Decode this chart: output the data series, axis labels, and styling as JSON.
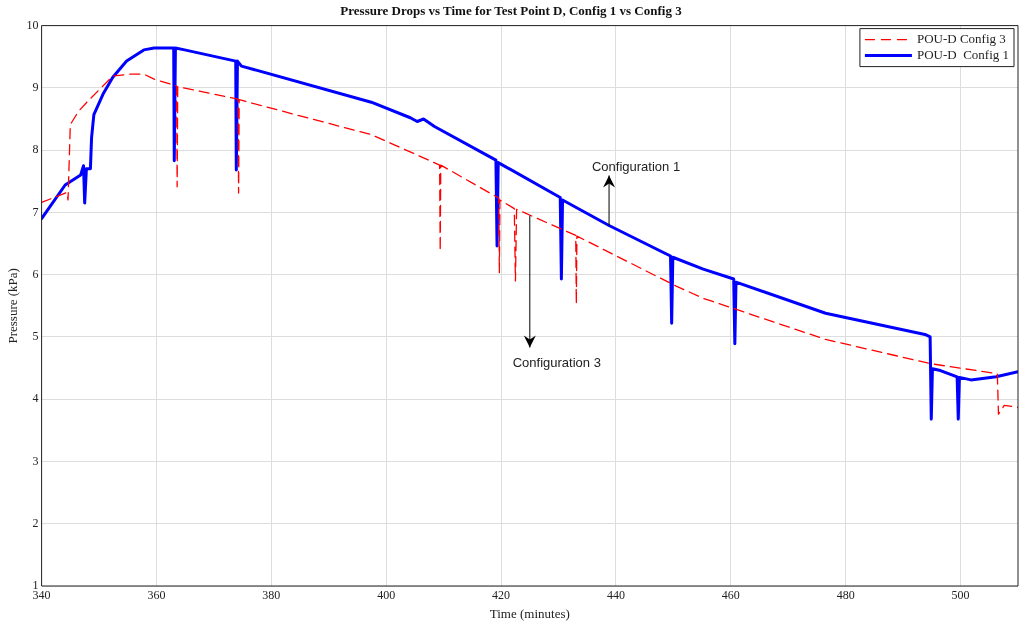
{
  "chart_data": {
    "type": "line",
    "title": "Pressure Drops vs Time for Test Point D, Config 1 vs Config 3",
    "xlabel": "Time (minutes)",
    "ylabel": "Pressure (kPa)",
    "xlim": [
      340,
      510
    ],
    "xticks": [
      340,
      360,
      380,
      400,
      420,
      440,
      460,
      480,
      500
    ],
    "ylim": [
      1,
      10
    ],
    "yticks": [
      1,
      2,
      3,
      4,
      5,
      6,
      7,
      8,
      9,
      10
    ],
    "grid": true,
    "legend": "top right",
    "marker": "none",
    "series": [
      {
        "name": "POU-D Config 3",
        "color": "#ff0000",
        "line_style": "dashed",
        "x": [
          340,
          344.4,
          344.6,
          345,
          346.4,
          348,
          352.4,
          355.3,
          357.8,
          359.6,
          363.5,
          363.6,
          363.7,
          374.2,
          374.3,
          374.4,
          385,
          397.4,
          409.3,
          409.4,
          409.5,
          419.6,
          419.7,
          419.8,
          422.3,
          422.5,
          422.7,
          433,
          433.1,
          433.2,
          450.4,
          455.2,
          476.5,
          494.8,
          506.4,
          506.6,
          507.6,
          510
        ],
        "values": [
          7.16,
          7.32,
          7.2,
          8.41,
          8.62,
          8.78,
          9.19,
          9.22,
          9.22,
          9.14,
          9.03,
          7.41,
          9.02,
          8.82,
          7.31,
          8.81,
          8.55,
          8.25,
          7.76,
          6.38,
          7.76,
          7.23,
          6.03,
          7.2,
          7.06,
          5.9,
          7.05,
          6.63,
          5.53,
          6.62,
          5.82,
          5.62,
          4.96,
          4.57,
          4.41,
          3.76,
          3.9,
          3.87
        ]
      },
      {
        "name": "POU-D  Config 1",
        "color": "#0000ff",
        "line_style": "solid",
        "x": [
          340,
          344.1,
          346.8,
          347.3,
          347.5,
          347.8,
          348.5,
          348.7,
          349.1,
          350.7,
          352.4,
          354.8,
          357.8,
          359.6,
          363,
          363.1,
          363.3,
          364.9,
          373.8,
          373.9,
          374.1,
          374.8,
          397.4,
          404.2,
          405.4,
          406.5,
          408.4,
          419.1,
          419.3,
          419.5,
          430.3,
          430.5,
          430.7,
          438.8,
          449.5,
          449.7,
          449.9,
          455.2,
          460.5,
          460.7,
          460.9,
          476.5,
          493.8,
          494.7,
          494.9,
          495.1,
          496.5,
          499.4,
          499.6,
          499.8,
          501.8,
          506.2,
          510
        ],
        "values": [
          6.9,
          7.44,
          7.6,
          7.75,
          7.15,
          7.7,
          7.7,
          8.2,
          8.57,
          8.9,
          9.17,
          9.43,
          9.61,
          9.64,
          9.64,
          7.83,
          9.64,
          9.61,
          9.43,
          7.68,
          9.43,
          9.35,
          8.77,
          8.52,
          8.46,
          8.5,
          8.38,
          7.84,
          6.46,
          7.8,
          7.24,
          5.93,
          7.2,
          6.79,
          6.3,
          5.22,
          6.28,
          6.09,
          5.93,
          4.89,
          5.88,
          5.38,
          5.04,
          5.0,
          3.68,
          4.49,
          4.46,
          4.36,
          3.68,
          4.35,
          4.31,
          4.36,
          4.44
        ]
      }
    ],
    "annotations": [
      {
        "text": "Configuration 1",
        "x": 438.8,
        "y": 6.79
      },
      {
        "text": "Configuration 3",
        "x": 425,
        "y": 6.95
      }
    ]
  }
}
